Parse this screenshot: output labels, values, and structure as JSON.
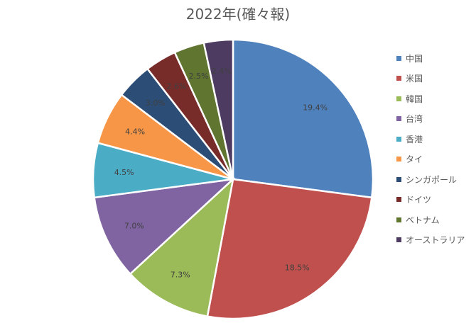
{
  "chart_data": {
    "type": "pie",
    "title": "2022年(確々報)",
    "legend_position": "right",
    "series": [
      {
        "name": "中国",
        "value": 19.4,
        "label": "19.4%",
        "color": "#4F81BD"
      },
      {
        "name": "米国",
        "value": 18.5,
        "label": "18.5%",
        "color": "#C0504D"
      },
      {
        "name": "韓国",
        "value": 7.3,
        "label": "7.3%",
        "color": "#9BBB59"
      },
      {
        "name": "台湾",
        "value": 7.0,
        "label": "7.0%",
        "color": "#8064A2"
      },
      {
        "name": "香港",
        "value": 4.5,
        "label": "4.5%",
        "color": "#4BACC6"
      },
      {
        "name": "タイ",
        "value": 4.4,
        "label": "4.4%",
        "color": "#F79646"
      },
      {
        "name": "シンガポール",
        "value": 3.0,
        "label": "3.0%",
        "color": "#2C4D75"
      },
      {
        "name": "ドイツ",
        "value": 2.6,
        "label": "2.6%",
        "color": "#772C2A"
      },
      {
        "name": "ベトナム",
        "value": 2.5,
        "label": "2.5%",
        "color": "#5F7530"
      },
      {
        "name": "オーストラリア",
        "value": 2.4,
        "label": "2.4%",
        "color": "#4D3B62"
      }
    ]
  }
}
